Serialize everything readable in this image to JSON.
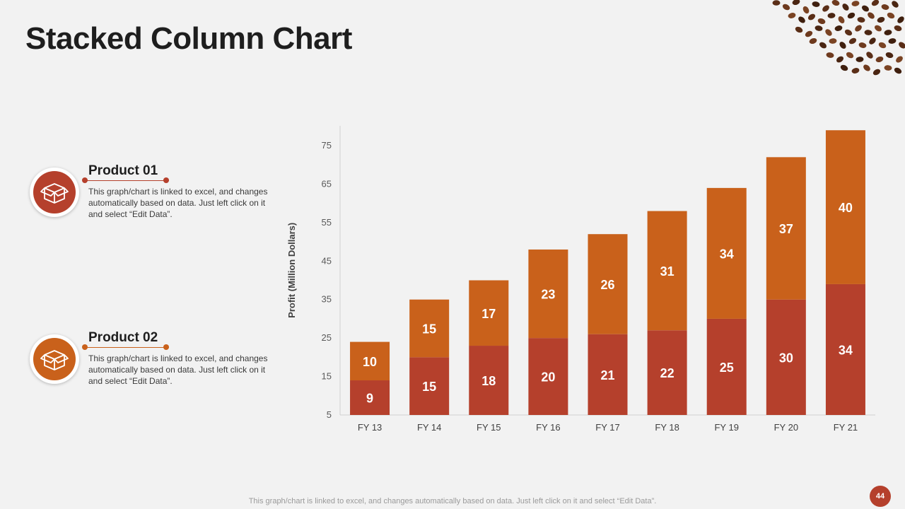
{
  "slide": {
    "title": "Stacked Column Chart",
    "footer": "This graph/chart is linked to excel,  and changes automatically based on data. Just left click on it and select “Edit Data”.",
    "page_number": "44",
    "accent_colors": {
      "product_01": "#b5402c",
      "product_02": "#c9611b"
    }
  },
  "legend": [
    {
      "name": "Product 01",
      "description": "This graph/chart is linked to excel, and changes automatically based on data. Just left click on it and select “Edit Data”.",
      "icon": "open-box-icon",
      "color": "#b5402c"
    },
    {
      "name": "Product 02",
      "description": "This graph/chart is linked to excel, and changes automatically based on data. Just left click on it and select “Edit Data”.",
      "icon": "open-box-icon",
      "color": "#c9611b"
    }
  ],
  "chart_data": {
    "type": "bar",
    "stacked": true,
    "categories": [
      "FY 13",
      "FY 14",
      "FY 15",
      "FY 16",
      "FY 17",
      "FY 18",
      "FY 19",
      "FY 20",
      "FY 21"
    ],
    "series": [
      {
        "name": "Product 01",
        "color": "#b5402c",
        "values": [
          9,
          15,
          18,
          20,
          21,
          22,
          25,
          30,
          34
        ]
      },
      {
        "name": "Product 02",
        "color": "#c9611b",
        "values": [
          10,
          15,
          17,
          23,
          26,
          31,
          34,
          37,
          40
        ]
      }
    ],
    "ylabel": "Profit  (Million Dollars)",
    "xlabel": "",
    "ylim": [
      5,
      80
    ],
    "yticks": [
      5,
      15,
      25,
      35,
      45,
      55,
      65,
      75
    ],
    "grid": false,
    "data_labels": true
  }
}
